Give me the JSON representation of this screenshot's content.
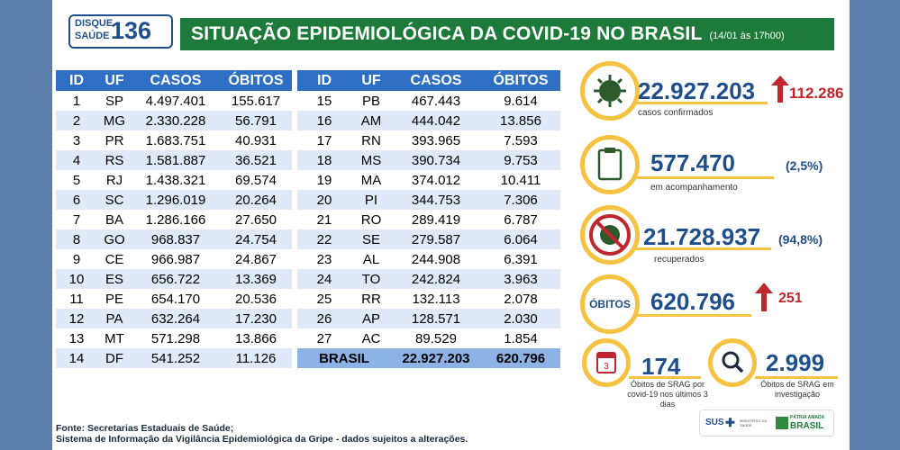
{
  "header": {
    "logo_line1": "DISQUE",
    "logo_line2": "SAÚDE",
    "logo_number": "136",
    "title": "SITUAÇÃO EPIDEMIOLÓGICA DA COVID-19 NO BRASIL",
    "date": "(14/01 às 17h00)"
  },
  "table": {
    "columns": [
      "ID",
      "UF",
      "CASOS",
      "ÓBITOS"
    ],
    "left_rows": [
      [
        "1",
        "SP",
        "4.497.401",
        "155.617"
      ],
      [
        "2",
        "MG",
        "2.330.228",
        "56.791"
      ],
      [
        "3",
        "PR",
        "1.683.751",
        "40.931"
      ],
      [
        "4",
        "RS",
        "1.581.887",
        "36.521"
      ],
      [
        "5",
        "RJ",
        "1.438.321",
        "69.574"
      ],
      [
        "6",
        "SC",
        "1.296.019",
        "20.264"
      ],
      [
        "7",
        "BA",
        "1.286.166",
        "27.650"
      ],
      [
        "8",
        "GO",
        "968.837",
        "24.754"
      ],
      [
        "9",
        "CE",
        "966.987",
        "24.867"
      ],
      [
        "10",
        "ES",
        "656.722",
        "13.369"
      ],
      [
        "11",
        "PE",
        "654.170",
        "20.536"
      ],
      [
        "12",
        "PA",
        "632.264",
        "17.230"
      ],
      [
        "13",
        "MT",
        "571.298",
        "13.866"
      ],
      [
        "14",
        "DF",
        "541.252",
        "11.126"
      ]
    ],
    "right_rows": [
      [
        "15",
        "PB",
        "467.443",
        "9.614"
      ],
      [
        "16",
        "AM",
        "444.042",
        "13.856"
      ],
      [
        "17",
        "RN",
        "393.965",
        "7.593"
      ],
      [
        "18",
        "MS",
        "390.734",
        "9.753"
      ],
      [
        "19",
        "MA",
        "374.012",
        "10.411"
      ],
      [
        "20",
        "PI",
        "344.753",
        "7.306"
      ],
      [
        "21",
        "RO",
        "289.419",
        "6.787"
      ],
      [
        "22",
        "SE",
        "279.587",
        "6.064"
      ],
      [
        "23",
        "AL",
        "244.908",
        "6.391"
      ],
      [
        "24",
        "TO",
        "242.824",
        "3.963"
      ],
      [
        "25",
        "RR",
        "132.113",
        "2.078"
      ],
      [
        "26",
        "AP",
        "128.571",
        "2.030"
      ],
      [
        "27",
        "AC",
        "89.529",
        "1.854"
      ]
    ],
    "total": {
      "label": "BRASIL",
      "casos": "22.927.203",
      "obitos": "620.796"
    }
  },
  "stats": {
    "confirmed": {
      "value": "22.927.203",
      "increase": "112.286",
      "label": "casos confirmados",
      "icon": "virus-icon"
    },
    "monitoring": {
      "value": "577.470",
      "percent": "(2,5%)",
      "label": "em acompanhamento",
      "icon": "clipboard-icon"
    },
    "recovered": {
      "value": "21.728.937",
      "percent": "(94,8%)",
      "label": "recuperados",
      "icon": "no-virus-icon"
    },
    "deaths": {
      "badge": "ÓBITOS",
      "value": "620.796",
      "increase": "251"
    },
    "srag_deaths": {
      "value": "174",
      "label": "Óbitos de SRAG por covid-19 nos últimos 3 dias",
      "icon_text": "3"
    },
    "srag_investigation": {
      "value": "2.999",
      "label": "Óbitos de SRAG em investigação",
      "icon": "magnifier-icon"
    }
  },
  "footer": {
    "source_line1": "Fonte: Secretarias Estaduais de Saúde;",
    "source_line2": "Sistema de Informação da Vigilância Epidemiológica da Gripe - dados sujeitos a alterações.",
    "sus_logo": "SUS",
    "ministry": "MINISTÉRIO DA SAÚDE",
    "gov_line1": "PÁTRIA AMADA",
    "gov_line2": "BRASIL"
  },
  "colors": {
    "title_bg": "#1e7a3a",
    "header_blue": "#2e6fc4",
    "accent_yellow": "#f5c242",
    "alert_red": "#c0262d"
  }
}
